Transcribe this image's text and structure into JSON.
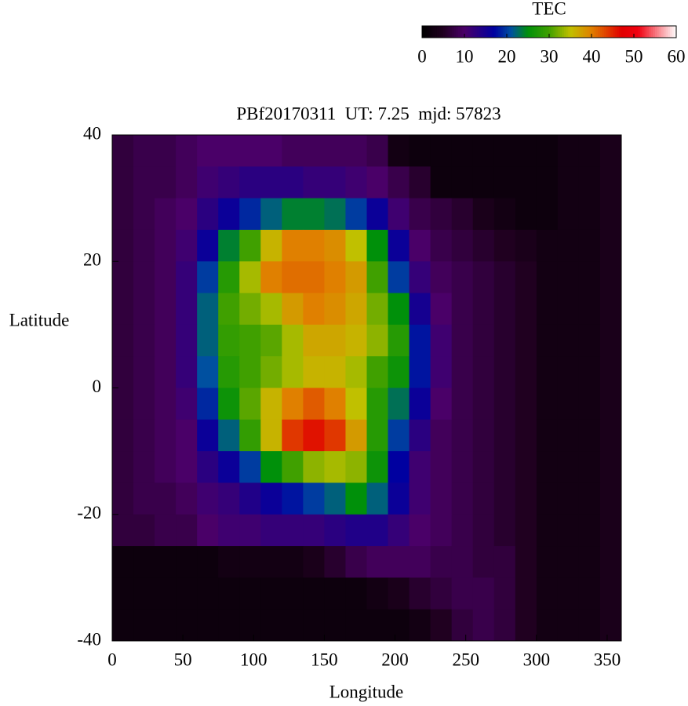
{
  "chart_data": {
    "type": "heatmap",
    "title": "PBf20170311  UT: 7.25  mjd: 57823",
    "x_label": "Longitude",
    "y_label": "Latitude",
    "xlim": [
      0,
      360
    ],
    "xticks": [
      0,
      50,
      100,
      150,
      200,
      250,
      300,
      350
    ],
    "ylim": [
      -40,
      40
    ],
    "yticks": [
      -40,
      -20,
      0,
      20,
      40
    ],
    "x": [
      7.5,
      22.5,
      37.5,
      52.5,
      67.5,
      82.5,
      97.5,
      112.5,
      127.5,
      142.5,
      157.5,
      172.5,
      187.5,
      202.5,
      217.5,
      232.5,
      247.5,
      262.5,
      277.5,
      292.5,
      307.5,
      322.5,
      337.5,
      352.5
    ],
    "y": [
      37.5,
      32.5,
      27.5,
      22.5,
      17.5,
      12.5,
      7.5,
      2.5,
      -2.5,
      -7.5,
      -12.5,
      -17.5,
      -22.5,
      -27.5,
      -32.5,
      -37.5
    ],
    "values": [
      [
        7,
        8,
        8,
        9,
        10,
        10,
        10,
        10,
        9,
        9,
        9,
        9,
        8,
        3,
        2,
        2,
        2,
        2,
        2,
        2,
        2,
        3,
        3,
        4
      ],
      [
        7,
        8,
        8,
        9,
        11,
        12,
        13,
        13,
        13,
        12,
        12,
        11,
        10,
        8,
        6,
        2,
        2,
        2,
        2,
        2,
        2,
        3,
        3,
        4
      ],
      [
        7,
        8,
        9,
        10,
        13,
        16,
        19,
        22,
        24,
        24,
        23,
        20,
        16,
        11,
        8,
        7,
        6,
        4,
        3,
        2,
        2,
        3,
        3,
        4
      ],
      [
        7,
        8,
        9,
        11,
        16,
        24,
        30,
        36,
        40,
        40,
        39,
        35,
        25,
        16,
        10,
        8,
        7,
        6,
        5,
        4,
        3,
        3,
        3,
        4
      ],
      [
        7,
        8,
        9,
        12,
        20,
        28,
        34,
        40,
        41,
        41,
        40,
        38,
        30,
        20,
        12,
        9,
        8,
        7,
        6,
        5,
        3,
        3,
        3,
        4
      ],
      [
        7,
        8,
        9,
        12,
        22,
        30,
        32,
        34,
        38,
        40,
        39,
        37,
        32,
        25,
        15,
        10,
        8,
        7,
        6,
        5,
        3,
        3,
        3,
        4
      ],
      [
        7,
        8,
        9,
        12,
        22,
        29,
        30,
        31,
        34,
        37,
        37,
        36,
        33,
        28,
        18,
        11,
        8,
        7,
        6,
        5,
        3,
        3,
        3,
        4
      ],
      [
        7,
        8,
        9,
        12,
        21,
        28,
        30,
        32,
        34,
        36,
        36,
        34,
        30,
        26,
        18,
        11,
        8,
        7,
        6,
        5,
        3,
        3,
        3,
        4
      ],
      [
        7,
        8,
        9,
        11,
        19,
        26,
        31,
        36,
        40,
        42,
        40,
        35,
        28,
        23,
        16,
        10,
        8,
        7,
        6,
        5,
        3,
        3,
        3,
        4
      ],
      [
        7,
        8,
        9,
        10,
        16,
        22,
        29,
        36,
        44,
        46,
        44,
        38,
        28,
        20,
        13,
        9,
        8,
        7,
        6,
        5,
        3,
        3,
        3,
        4
      ],
      [
        7,
        8,
        9,
        10,
        13,
        16,
        20,
        25,
        30,
        33,
        34,
        33,
        26,
        17,
        11,
        9,
        8,
        7,
        6,
        5,
        3,
        3,
        3,
        4
      ],
      [
        7,
        8,
        8,
        9,
        11,
        12,
        14,
        16,
        18,
        20,
        22,
        25,
        22,
        16,
        11,
        9,
        8,
        7,
        6,
        5,
        3,
        3,
        3,
        4
      ],
      [
        7,
        7,
        8,
        8,
        10,
        11,
        11,
        12,
        12,
        12,
        13,
        14,
        14,
        12,
        10,
        9,
        8,
        7,
        6,
        5,
        3,
        3,
        3,
        4
      ],
      [
        2,
        2,
        2,
        2,
        2,
        3,
        3,
        3,
        3,
        4,
        6,
        8,
        9,
        9,
        9,
        8,
        8,
        7,
        7,
        5,
        3,
        3,
        3,
        4
      ],
      [
        2,
        2,
        2,
        2,
        2,
        2,
        2,
        2,
        2,
        2,
        2,
        2,
        3,
        4,
        6,
        7,
        8,
        8,
        7,
        5,
        3,
        3,
        3,
        4
      ],
      [
        2,
        2,
        2,
        2,
        2,
        2,
        2,
        2,
        2,
        2,
        2,
        2,
        2,
        2,
        3,
        5,
        7,
        8,
        7,
        5,
        3,
        3,
        3,
        4
      ]
    ],
    "colorbar": {
      "title": "TEC",
      "lim": [
        0,
        60
      ],
      "ticks": [
        0,
        10,
        20,
        30,
        40,
        50,
        60
      ]
    },
    "colorscale": [
      [
        0,
        "#000000"
      ],
      [
        5,
        "#200020"
      ],
      [
        10,
        "#4a0068"
      ],
      [
        17,
        "#0000a0"
      ],
      [
        21,
        "#0050a0"
      ],
      [
        25,
        "#00900a"
      ],
      [
        30,
        "#40a000"
      ],
      [
        35,
        "#c0c000"
      ],
      [
        40,
        "#e08000"
      ],
      [
        47,
        "#e00000"
      ],
      [
        51,
        "#f00010"
      ],
      [
        60,
        "#ffffff"
      ]
    ]
  }
}
